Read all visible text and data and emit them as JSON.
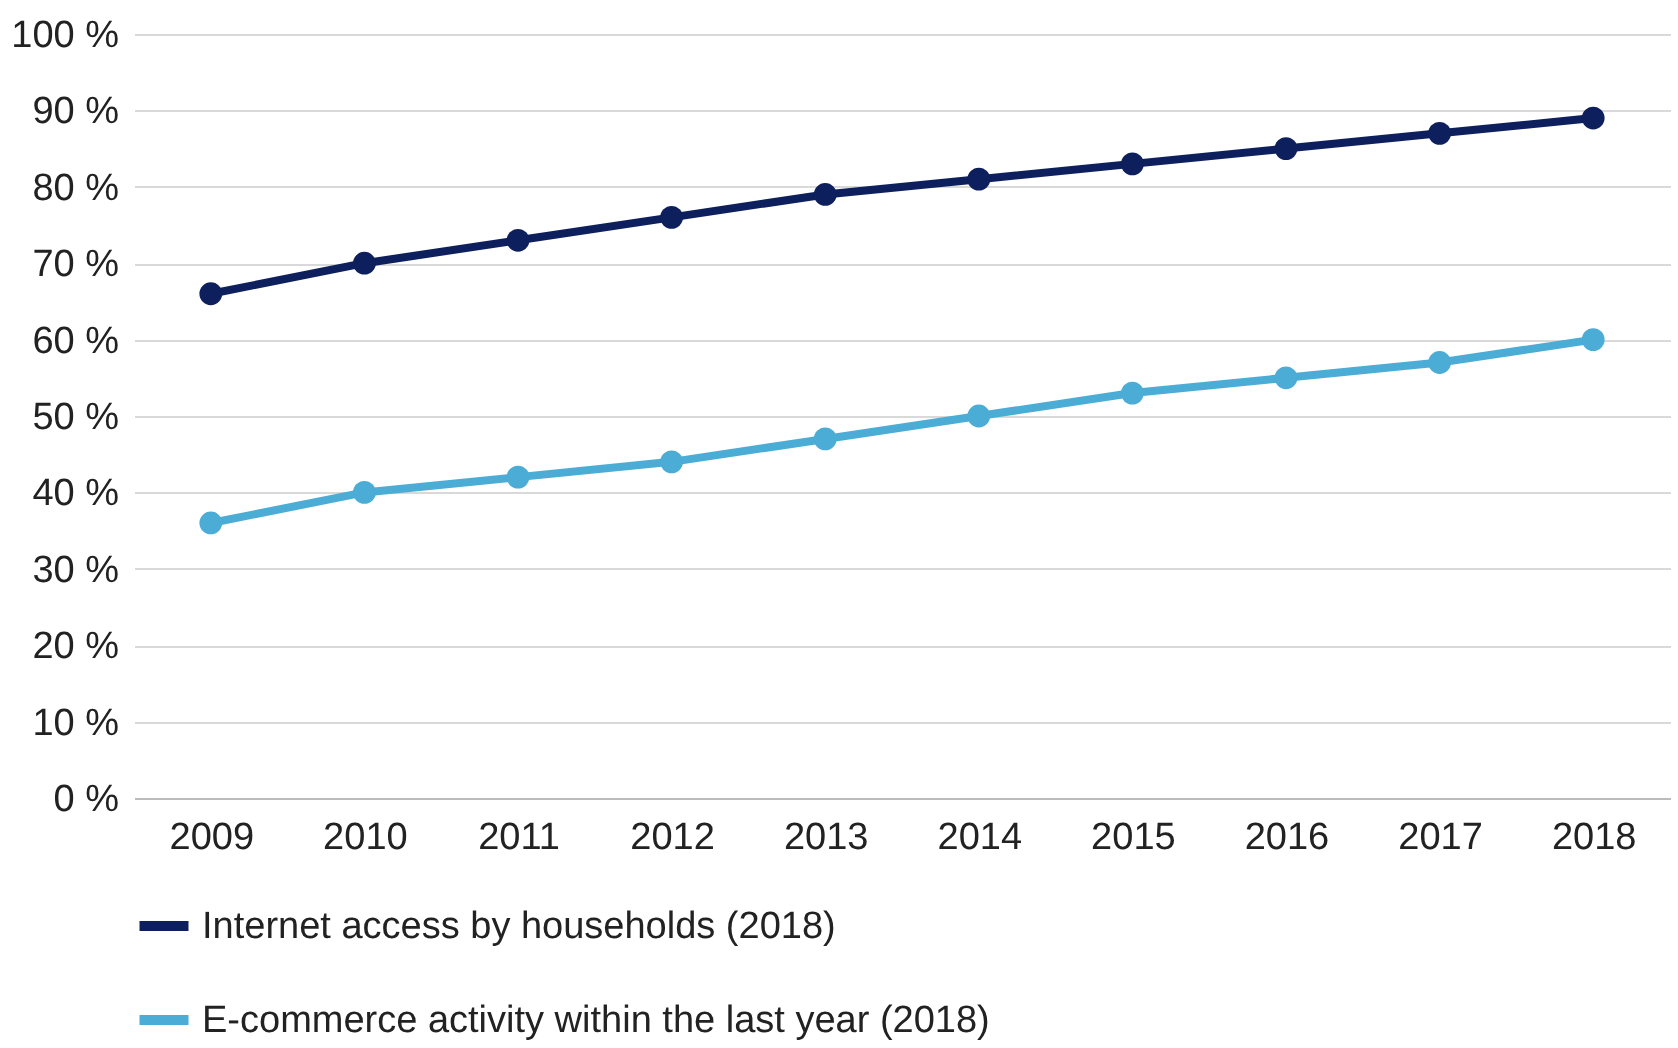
{
  "chart_data": {
    "type": "line",
    "categories": [
      "2009",
      "2010",
      "2011",
      "2012",
      "2013",
      "2014",
      "2015",
      "2016",
      "2017",
      "2018"
    ],
    "series": [
      {
        "name": "Internet access by households (2018)",
        "color": "#0d1f5c",
        "values": [
          66,
          70,
          73,
          76,
          79,
          81,
          83,
          85,
          87,
          89
        ]
      },
      {
        "name": "E-commerce activity within the last year (2018)",
        "color": "#4bacd6",
        "values": [
          36,
          40,
          42,
          44,
          47,
          50,
          53,
          55,
          57,
          60
        ]
      }
    ],
    "ylim": [
      0,
      100
    ],
    "yticks": [
      {
        "value": 0,
        "label": "0 %"
      },
      {
        "value": 10,
        "label": "10 %"
      },
      {
        "value": 20,
        "label": "20 %"
      },
      {
        "value": 30,
        "label": "30 %"
      },
      {
        "value": 40,
        "label": "40 %"
      },
      {
        "value": 50,
        "label": "50 %"
      },
      {
        "value": 60,
        "label": "60 %"
      },
      {
        "value": 70,
        "label": "70 %"
      },
      {
        "value": 80,
        "label": "80 %"
      },
      {
        "value": 90,
        "label": "90 %"
      },
      {
        "value": 100,
        "label": "100 %"
      }
    ],
    "grid": "y",
    "legend": "bottom",
    "marker": "circle",
    "line_style": "solid"
  }
}
